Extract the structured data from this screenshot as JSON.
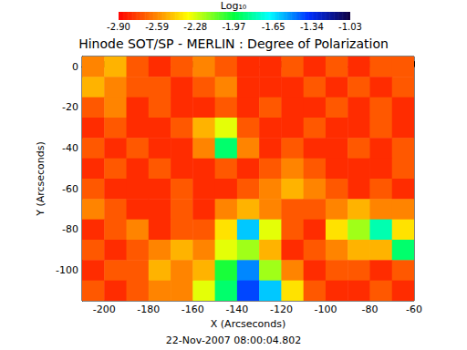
{
  "chart_data": {
    "type": "heatmap",
    "title": "Hinode SOT/SP - MERLIN : Degree of Polarization",
    "x_label": "X (Arcseconds)",
    "y_label": "Y (Arcseconds)",
    "annotation": "22-Nov-2007 08:00:04.802",
    "xlim": [
      -210,
      -60
    ],
    "ylim": [
      -115,
      5
    ],
    "xticks": [
      -200,
      -180,
      -160,
      -140,
      -120,
      -100,
      -80,
      -60
    ],
    "yticks": [
      -100,
      -80,
      -60,
      -40,
      -20,
      0
    ],
    "cells": {
      "x": [
        -205,
        -195,
        -185,
        -175,
        -165,
        -155,
        -145,
        -135,
        -125,
        -115,
        -105,
        -95,
        -85,
        -75,
        -65
      ],
      "y": [
        0,
        -10,
        -20,
        -30,
        -40,
        -50,
        -60,
        -70,
        -80,
        -90,
        -100,
        -110
      ],
      "values": [
        [
          -2.6,
          -2.5,
          -2.7,
          -2.8,
          -2.7,
          -2.6,
          -2.7,
          -2.8,
          -2.8,
          -2.7,
          -2.8,
          -2.7,
          -2.8,
          -2.7,
          -2.7
        ],
        [
          -2.5,
          -2.6,
          -2.7,
          -2.7,
          -2.8,
          -2.7,
          -2.6,
          -2.8,
          -2.8,
          -2.8,
          -2.7,
          -2.8,
          -2.7,
          -2.8,
          -2.7
        ],
        [
          -2.7,
          -2.6,
          -2.8,
          -2.7,
          -2.8,
          -2.8,
          -2.7,
          -2.8,
          -2.7,
          -2.8,
          -2.8,
          -2.7,
          -2.8,
          -2.7,
          -2.8
        ],
        [
          -2.8,
          -2.7,
          -2.8,
          -2.8,
          -2.7,
          -2.5,
          -2.3,
          -2.7,
          -2.8,
          -2.8,
          -2.7,
          -2.8,
          -2.8,
          -2.7,
          -2.8
        ],
        [
          -2.7,
          -2.8,
          -2.7,
          -2.8,
          -2.8,
          -2.6,
          -1.9,
          -2.6,
          -2.8,
          -2.7,
          -2.8,
          -2.8,
          -2.7,
          -2.8,
          -2.7
        ],
        [
          -2.8,
          -2.7,
          -2.8,
          -2.7,
          -2.8,
          -2.8,
          -2.7,
          -2.8,
          -2.7,
          -2.6,
          -2.7,
          -2.8,
          -2.8,
          -2.8,
          -2.7
        ],
        [
          -2.7,
          -2.8,
          -2.8,
          -2.8,
          -2.7,
          -2.8,
          -2.8,
          -2.7,
          -2.6,
          -2.5,
          -2.6,
          -2.7,
          -2.8,
          -2.7,
          -2.8
        ],
        [
          -2.6,
          -2.7,
          -2.8,
          -2.8,
          -2.7,
          -2.8,
          -2.6,
          -2.5,
          -2.6,
          -2.7,
          -2.7,
          -2.6,
          -2.5,
          -2.6,
          -2.6
        ],
        [
          -2.8,
          -2.7,
          -2.6,
          -2.8,
          -2.7,
          -2.7,
          -2.4,
          -1.6,
          -2.3,
          -2.7,
          -2.8,
          -2.4,
          -2.2,
          -1.8,
          -2.4
        ],
        [
          -2.7,
          -2.8,
          -2.7,
          -2.6,
          -2.5,
          -2.6,
          -2.3,
          -2.2,
          -2.5,
          -2.8,
          -2.7,
          -2.6,
          -2.5,
          -2.5,
          -1.9
        ],
        [
          -2.8,
          -2.7,
          -2.7,
          -2.5,
          -2.6,
          -2.5,
          -2.0,
          -1.5,
          -2.2,
          -2.6,
          -2.8,
          -2.7,
          -2.7,
          -2.8,
          -2.7
        ],
        [
          -2.7,
          -2.8,
          -2.7,
          -2.6,
          -2.6,
          -2.3,
          -1.9,
          -1.4,
          -1.6,
          -2.4,
          -2.7,
          -2.8,
          -2.8,
          -2.7,
          -2.8
        ]
      ]
    },
    "colorbar": {
      "label": "Log₁₀",
      "range": [
        -2.9,
        -1.03
      ],
      "ticks": [
        {
          "value": -2.9,
          "label": "-2.90"
        },
        -2.59,
        -2.28,
        -1.97,
        -1.65,
        -1.34,
        -1.03
      ]
    }
  }
}
